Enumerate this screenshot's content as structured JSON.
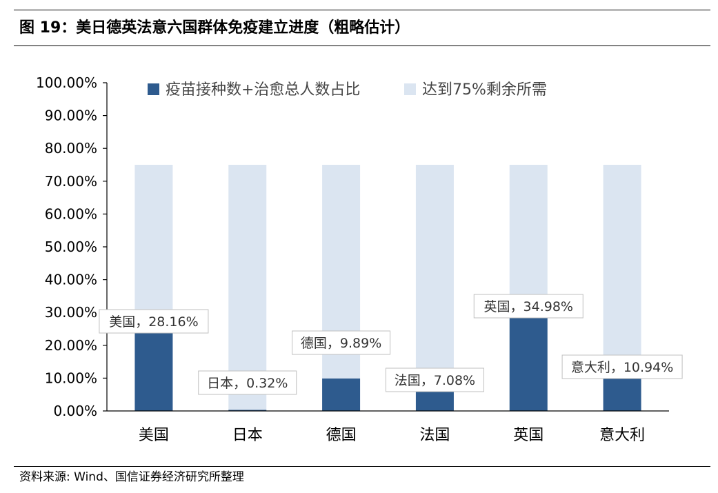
{
  "figure": {
    "title": "图 19：美日德英法意六国群体免疫建立进度（粗略估计）",
    "source": "资料来源: Wind、国信证券经济研究所整理"
  },
  "chart_data": {
    "type": "bar",
    "stacked": true,
    "categories": [
      "美国",
      "日本",
      "德国",
      "法国",
      "英国",
      "意大利"
    ],
    "series": [
      {
        "name": "疫苗接种数+治愈总人数占比",
        "values": [
          0.2816,
          0.0032,
          0.0989,
          0.0708,
          0.3498,
          0.1094
        ],
        "color": "#2e5b8e"
      },
      {
        "name": "达到75%剩余所需",
        "values": [
          0.4684,
          0.7468,
          0.6511,
          0.6792,
          0.4002,
          0.6406
        ],
        "color": "#dbe5f1"
      }
    ],
    "data_labels": [
      "美国，28.16%",
      "日本，0.32%",
      "德国，9.89%",
      "法国，7.08%",
      "英国，34.98%",
      "意大利，10.94%"
    ],
    "y_ticks": [
      "0.00%",
      "10.00%",
      "20.00%",
      "30.00%",
      "40.00%",
      "50.00%",
      "60.00%",
      "70.00%",
      "80.00%",
      "90.00%",
      "100.00%"
    ],
    "ylim": [
      0,
      1
    ],
    "grid": false,
    "legend_position": "top"
  }
}
